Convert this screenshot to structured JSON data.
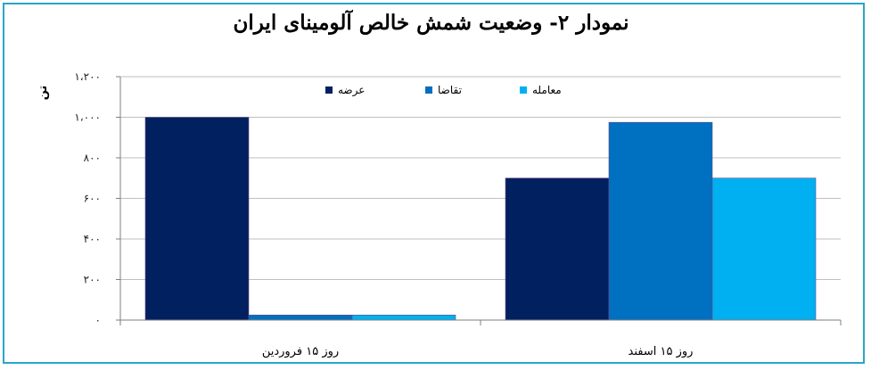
{
  "chart_data": {
    "type": "bar",
    "title": "نمودار ۲- وضعیت شمش خالص آلومینای ایران",
    "ylabel": "تن",
    "xlabel": "",
    "categories": [
      "روز ۱۵ فروردین",
      "روز ۱۵ اسفند"
    ],
    "series": [
      {
        "name": "عرضه",
        "values": [
          1000,
          700
        ],
        "color": "#002060"
      },
      {
        "name": "تقاضا",
        "values": [
          25,
          975
        ],
        "color": "#0070c0"
      },
      {
        "name": "معامله",
        "values": [
          25,
          700
        ],
        "color": "#00b0f0"
      }
    ],
    "ylim": [
      0,
      1200
    ],
    "yticks": [
      0,
      200,
      400,
      600,
      800,
      1000,
      1200
    ],
    "ytick_labels": [
      "۰",
      "۲۰۰",
      "۴۰۰",
      "۶۰۰",
      "۸۰۰",
      "۱،۰۰۰",
      "۱،۲۰۰"
    ],
    "grid": true,
    "legend_position": "top"
  }
}
